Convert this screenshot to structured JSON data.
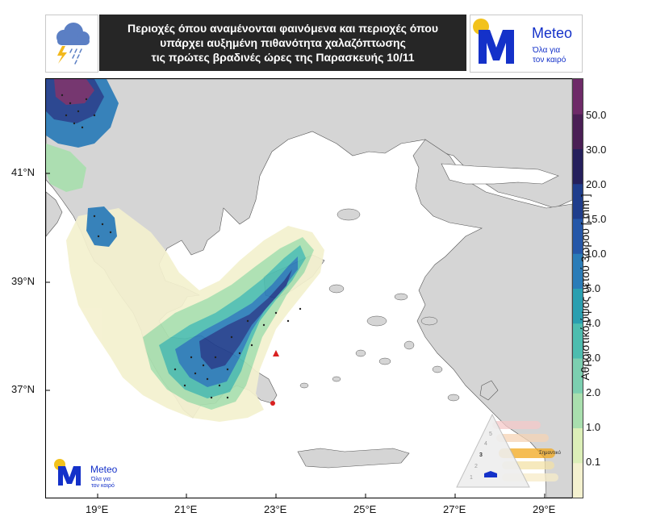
{
  "header": {
    "title_line1": "Περιοχές όπου αναμένονται φαινόμενα και περιοχές όπου",
    "title_line2": "υπάρχει αυξημένη πιθανότητα χαλαζόπτωσης",
    "title_line3": "τις πρώτες βραδινές ώρες της Παρασκευής 10/11"
  },
  "logo": {
    "name": "Meteo",
    "tagline_line1": "Όλα για",
    "tagline_line2": "τον καιρό"
  },
  "map": {
    "lat_labels": [
      "41°N",
      "39°N",
      "37°N"
    ],
    "lon_labels": [
      "19°E",
      "21°E",
      "23°E",
      "25°E",
      "27°E",
      "29°E"
    ]
  },
  "colorbar": {
    "title": "Αθροιστικό ύψος υετού 3ωρου [ mm ]",
    "ticks": [
      "50.0",
      "30.0",
      "20.0",
      "15.0",
      "10.0",
      "5.0",
      "4.0",
      "3.0",
      "2.0",
      "1.0",
      "0.1"
    ],
    "colors": [
      "#f4f1cf",
      "#dcefb8",
      "#a9dfae",
      "#7ccfb0",
      "#4dbdaf",
      "#2a9fb0",
      "#2a7cb8",
      "#2557a8",
      "#1f3d8c",
      "#25205c",
      "#4a1f55",
      "#6e2a68"
    ]
  },
  "hail_legend": {
    "level_numbers": [
      "1",
      "2",
      "3",
      "4",
      "5"
    ],
    "active_label": "Σημαντικό"
  }
}
